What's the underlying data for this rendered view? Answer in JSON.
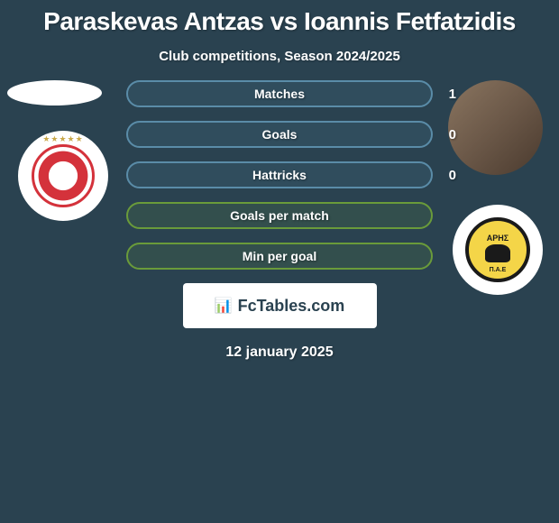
{
  "title": "Paraskevas Antzas vs Ioannis Fetfatzidis",
  "subtitle": "Club competitions, Season 2024/2025",
  "colors": {
    "background": "#2a4250",
    "text": "#ffffff",
    "bar_blue_border": "#5a8ca8",
    "bar_green_border": "#6a9b3a",
    "brand_bg": "#ffffff",
    "brand_text": "#2a4250",
    "badge_left_accent": "#d4323b",
    "badge_right_bg": "#f4d548",
    "badge_right_border": "#1a1a1a"
  },
  "typography": {
    "title_fontsize": 28,
    "subtitle_fontsize": 15,
    "bar_label_fontsize": 14,
    "date_fontsize": 16
  },
  "stats": [
    {
      "label": "Matches",
      "value": "1",
      "style": "blue"
    },
    {
      "label": "Goals",
      "value": "0",
      "style": "blue"
    },
    {
      "label": "Hattricks",
      "value": "0",
      "style": "blue"
    },
    {
      "label": "Goals per match",
      "value": "",
      "style": "green"
    },
    {
      "label": "Min per goal",
      "value": "",
      "style": "green"
    }
  ],
  "player_left": {
    "name": "Paraskevas Antzas",
    "club_badge": "olympiacos",
    "club_stars": "★★★★★"
  },
  "player_right": {
    "name": "Ioannis Fetfatzidis",
    "club_badge": "aris",
    "club_text_top": "ΑΡΗΣ",
    "club_text_bottom": "Π.Α.Ε"
  },
  "brand": {
    "icon": "📊",
    "text": "FcTables.com"
  },
  "date": "12 january 2025"
}
